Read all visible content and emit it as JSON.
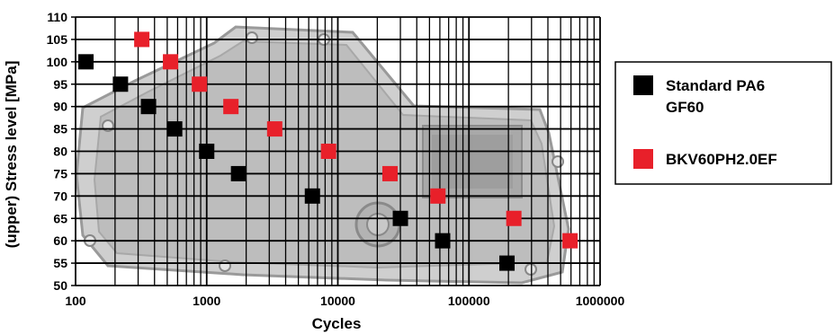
{
  "chart_data": {
    "type": "scatter",
    "title": "",
    "xlabel": "Cycles",
    "ylabel": "(upper) Stress level  [MPa]",
    "x_scale": "log",
    "xlim": [
      100,
      1000000
    ],
    "ylim": [
      50,
      110
    ],
    "x_ticks": [
      "100",
      "1000",
      "10000",
      "100000",
      "1000000"
    ],
    "y_ticks": [
      "50",
      "55",
      "60",
      "65",
      "70",
      "75",
      "80",
      "85",
      "90",
      "95",
      "100",
      "105",
      "110"
    ],
    "grid": true,
    "legend_position": "right",
    "series": [
      {
        "name_lines": [
          "Standard PA6",
          "GF60"
        ],
        "color": "#000000",
        "marker": "square",
        "points": [
          [
            120,
            100
          ],
          [
            220,
            95
          ],
          [
            360,
            90
          ],
          [
            570,
            85
          ],
          [
            1000,
            80
          ],
          [
            1750,
            75
          ],
          [
            6400,
            70
          ],
          [
            30000,
            65
          ],
          [
            63000,
            60
          ],
          [
            195000,
            55
          ]
        ]
      },
      {
        "name_lines": [
          "BKV60PH2.0EF"
        ],
        "color": "#e8202a",
        "marker": "square",
        "points": [
          [
            320,
            105
          ],
          [
            530,
            100
          ],
          [
            880,
            95
          ],
          [
            1530,
            90
          ],
          [
            3300,
            85
          ],
          [
            8500,
            80
          ],
          [
            25000,
            75
          ],
          [
            58000,
            70
          ],
          [
            220000,
            65
          ],
          [
            590000,
            60
          ]
        ]
      }
    ],
    "background_image": "transmission-oil-pan-photo"
  }
}
